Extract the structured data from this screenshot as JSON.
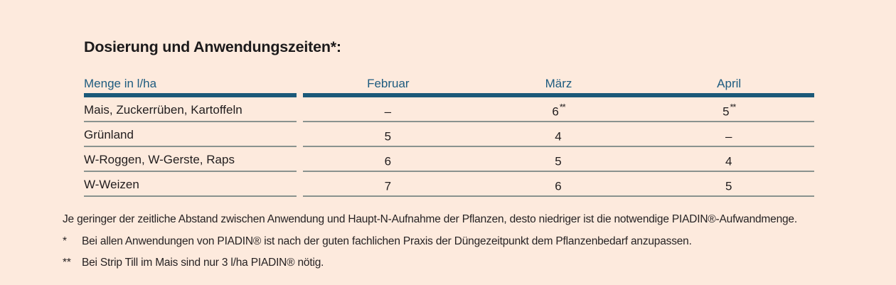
{
  "title": "Dosierung und Anwendungszeiten*:",
  "colors": {
    "background": "#fdeadd",
    "accent_teal_bar": "#1b5979",
    "accent_teal_text": "#1d5b7f",
    "row_line": "#8a938f",
    "text": "#211d1e"
  },
  "table": {
    "col0_header": "Menge in l/ha",
    "months": [
      "Februar",
      "März",
      "April"
    ],
    "rows": [
      {
        "label": "Mais, Zuckerrüben, Kartoffeln",
        "values": [
          {
            "v": "–",
            "sup": ""
          },
          {
            "v": "6",
            "sup": "**"
          },
          {
            "v": "5",
            "sup": "**"
          }
        ]
      },
      {
        "label": "Grünland",
        "values": [
          {
            "v": "5",
            "sup": ""
          },
          {
            "v": "4",
            "sup": ""
          },
          {
            "v": "–",
            "sup": ""
          }
        ]
      },
      {
        "label": "W-Roggen, W-Gerste, Raps",
        "values": [
          {
            "v": "6",
            "sup": ""
          },
          {
            "v": "5",
            "sup": ""
          },
          {
            "v": "4",
            "sup": ""
          }
        ]
      },
      {
        "label": "W-Weizen",
        "values": [
          {
            "v": "7",
            "sup": ""
          },
          {
            "v": "6",
            "sup": ""
          },
          {
            "v": "5",
            "sup": ""
          }
        ]
      }
    ]
  },
  "notes": {
    "intro": "Je geringer der zeitliche Abstand zwischen Anwendung und Haupt-N-Aufnahme der Pflanzen, desto niedriger ist die notwendige PIADIN®-Aufwandmenge.",
    "footnotes": [
      {
        "marker": "*",
        "text": "Bei allen Anwendungen von PIADIN® ist nach der guten fachlichen Praxis der Düngezeitpunkt dem Pflanzenbedarf anzupassen."
      },
      {
        "marker": "**",
        "text": "Bei Strip Till im Mais sind nur 3 l/ha PIADIN® nötig."
      }
    ]
  }
}
